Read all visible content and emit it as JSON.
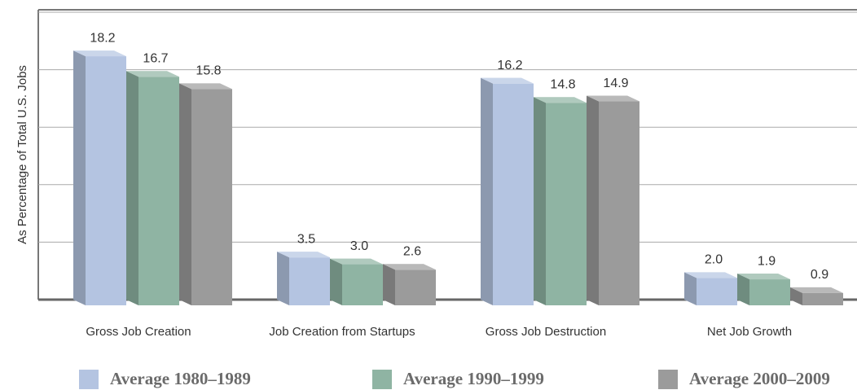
{
  "chart_data": {
    "type": "bar3d",
    "y_label": "As Percentage of Total U.S. Jobs",
    "categories": [
      "Gross Job Creation",
      "Job Creation from Startups",
      "Gross Job Destruction",
      "Net Job Growth"
    ],
    "series": [
      {
        "name": "Average 1980–1989",
        "color": "#b4c4e1",
        "values": [
          18.2,
          3.5,
          16.2,
          2.0
        ],
        "value_labels": [
          "18.2",
          "3.5",
          "16.2",
          "2.0"
        ]
      },
      {
        "name": "Average 1990–1999",
        "color": "#8fb4a3",
        "values": [
          16.7,
          3.0,
          14.8,
          1.9
        ],
        "value_labels": [
          "16.7",
          "3.0",
          "14.8",
          "1.9"
        ]
      },
      {
        "name": "Average 2000–2009",
        "color": "#9b9b9b",
        "values": [
          15.8,
          2.6,
          14.9,
          0.9
        ],
        "value_labels": [
          "15.8",
          "2.6",
          "14.9",
          "0.9"
        ]
      }
    ],
    "ylim": [
      0,
      21
    ],
    "yticks": [
      0,
      4.2,
      8.4,
      12.6,
      16.8,
      21
    ],
    "grid": true,
    "tick_labels": false
  }
}
